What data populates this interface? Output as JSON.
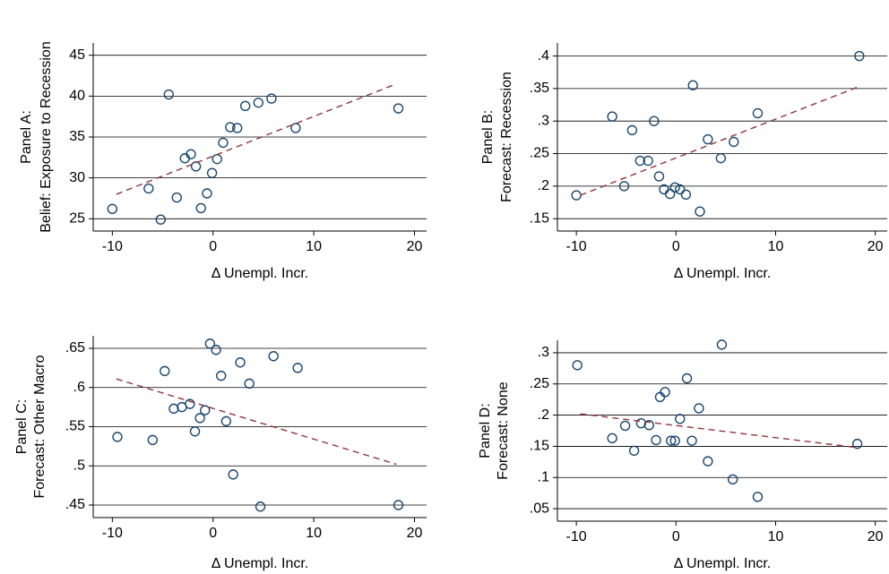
{
  "chart_data": [
    {
      "type": "scatter",
      "title": "Panel A:",
      "ylabel": "Belief: Exposure to Recession",
      "xlabel": "Δ Unempl. Incr.",
      "xlim": [
        -11.9,
        21.2
      ],
      "xticks": [
        -10,
        0,
        10,
        20
      ],
      "ylim": [
        23.5,
        46.5
      ],
      "yticks": [
        25,
        30,
        35,
        40,
        45
      ],
      "grid": true,
      "series": [
        {
          "color": "#1a476f",
          "x": [
            -10,
            -6.4,
            -5.2,
            -4.4,
            -3.6,
            -2.8,
            -2.2,
            -1.7,
            -1.2,
            -0.6,
            -0.1,
            0.4,
            1.0,
            1.7,
            2.4,
            3.2,
            4.5,
            5.8,
            8.2,
            18.4
          ],
          "values": [
            26.2,
            28.7,
            24.9,
            40.2,
            27.6,
            32.4,
            32.9,
            31.4,
            26.3,
            28.1,
            30.6,
            32.3,
            34.3,
            36.2,
            36.1,
            38.8,
            39.2,
            39.7,
            36.1,
            38.5
          ]
        }
      ],
      "fit": {
        "color": "#90353b",
        "x": [
          -9.6,
          18.2
        ],
        "values": [
          28.0,
          41.5
        ]
      }
    },
    {
      "type": "scatter",
      "title": "Panel B:",
      "ylabel": "Forecast: Recession",
      "xlabel": "Δ Unempl. Incr.",
      "xlim": [
        -11.9,
        21.2
      ],
      "xticks": [
        -10,
        0,
        10,
        20
      ],
      "ylim": [
        0.131,
        0.42
      ],
      "yticks": [
        {
          "value": 0.15,
          "label": ".15"
        },
        {
          "value": 0.2,
          "label": ".2"
        },
        {
          "value": 0.25,
          "label": ".25"
        },
        {
          "value": 0.3,
          "label": ".3"
        },
        {
          "value": 0.35,
          "label": ".35"
        },
        {
          "value": 0.4,
          "label": ".4"
        }
      ],
      "grid": true,
      "series": [
        {
          "color": "#1a476f",
          "x": [
            -10,
            -6.4,
            -5.2,
            -4.4,
            -3.6,
            -2.8,
            -2.2,
            -1.7,
            -1.2,
            -0.6,
            -0.1,
            0.4,
            1.0,
            1.7,
            2.4,
            3.2,
            4.5,
            5.8,
            8.2,
            18.4
          ],
          "values": [
            0.186,
            0.307,
            0.2,
            0.286,
            0.239,
            0.239,
            0.3,
            0.215,
            0.195,
            0.188,
            0.198,
            0.195,
            0.187,
            0.355,
            0.161,
            0.272,
            0.243,
            0.268,
            0.312,
            0.4
          ]
        }
      ],
      "fit": {
        "color": "#90353b",
        "x": [
          -9.6,
          18.2
        ],
        "values": [
          0.186,
          0.352
        ]
      }
    },
    {
      "type": "scatter",
      "title": "Panel C:",
      "ylabel": "Forecast: Other Macro",
      "xlabel": "Δ Unempl. Incr.",
      "xlim": [
        -11.9,
        21.2
      ],
      "xticks": [
        -10,
        0,
        10,
        20
      ],
      "ylim": [
        0.434,
        0.666
      ],
      "yticks": [
        {
          "value": 0.45,
          "label": ".45"
        },
        {
          "value": 0.5,
          "label": ".5"
        },
        {
          "value": 0.55,
          "label": ".55"
        },
        {
          "value": 0.6,
          "label": ".6"
        },
        {
          "value": 0.65,
          "label": ".65"
        }
      ],
      "grid": true,
      "series": [
        {
          "color": "#1a476f",
          "x": [
            -9.5,
            -6.0,
            -4.8,
            -3.9,
            -3.1,
            -2.3,
            -1.8,
            -1.3,
            -0.8,
            -0.3,
            0.3,
            0.8,
            1.3,
            2.0,
            2.7,
            3.6,
            4.7,
            6.0,
            8.4,
            18.4
          ],
          "values": [
            0.537,
            0.533,
            0.621,
            0.573,
            0.575,
            0.579,
            0.544,
            0.561,
            0.571,
            0.656,
            0.648,
            0.615,
            0.557,
            0.489,
            0.632,
            0.605,
            0.448,
            0.64,
            0.625,
            0.45
          ]
        }
      ],
      "fit": {
        "color": "#90353b",
        "x": [
          -9.6,
          18.2
        ],
        "values": [
          0.611,
          0.502
        ]
      }
    },
    {
      "type": "scatter",
      "title": "Panel D:",
      "ylabel": "Forecast: None",
      "xlabel": "Δ Unempl. Incr.",
      "xlim": [
        -11.9,
        21.2
      ],
      "xticks": [
        -10,
        0,
        10,
        20
      ],
      "ylim": [
        0.03,
        0.32
      ],
      "yticks": [
        {
          "value": 0.05,
          "label": ".05"
        },
        {
          "value": 0.1,
          "label": ".1"
        },
        {
          "value": 0.15,
          "label": ".15"
        },
        {
          "value": 0.2,
          "label": ".2"
        },
        {
          "value": 0.25,
          "label": ".25"
        },
        {
          "value": 0.3,
          "label": ".3"
        }
      ],
      "grid": true,
      "series": [
        {
          "color": "#1a476f",
          "x": [
            -9.9,
            -6.4,
            -5.1,
            -4.2,
            -3.5,
            -2.7,
            -2.0,
            -1.6,
            -1.1,
            -0.5,
            -0.1,
            0.4,
            1.1,
            1.6,
            2.3,
            3.2,
            4.6,
            5.7,
            8.2,
            18.2
          ],
          "values": [
            0.28,
            0.163,
            0.183,
            0.143,
            0.187,
            0.184,
            0.16,
            0.229,
            0.237,
            0.159,
            0.159,
            0.194,
            0.259,
            0.159,
            0.211,
            0.126,
            0.313,
            0.097,
            0.069,
            0.154
          ]
        }
      ],
      "fit": {
        "color": "#90353b",
        "x": [
          -9.6,
          18.2
        ],
        "values": [
          0.202,
          0.148
        ]
      }
    }
  ]
}
